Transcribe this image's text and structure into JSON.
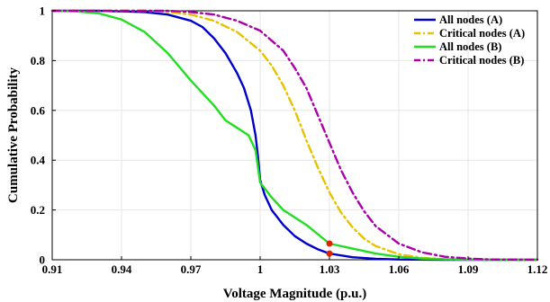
{
  "chart_data": {
    "type": "line",
    "title": "",
    "xlabel": "Voltage Magnitude (p.u.)",
    "ylabel": "Cumulative Probability",
    "xlim": [
      0.91,
      1.12
    ],
    "ylim": [
      0,
      1
    ],
    "xticks": [
      "0.91",
      "0.94",
      "0.97",
      "1",
      "1.03",
      "1.06",
      "1.09",
      "1.12"
    ],
    "yticks": [
      "0",
      "0.2",
      "0.4",
      "0.6",
      "0.8",
      "1"
    ],
    "grid": true,
    "legend_position": "top-right",
    "series": [
      {
        "name": "All nodes (A)",
        "color": "#0000cc",
        "style": "solid",
        "points": [
          [
            0.91,
            1.0
          ],
          [
            0.93,
            1.0
          ],
          [
            0.95,
            0.995
          ],
          [
            0.96,
            0.985
          ],
          [
            0.97,
            0.96
          ],
          [
            0.975,
            0.935
          ],
          [
            0.98,
            0.89
          ],
          [
            0.985,
            0.83
          ],
          [
            0.99,
            0.75
          ],
          [
            0.993,
            0.69
          ],
          [
            0.996,
            0.6
          ],
          [
            0.998,
            0.5
          ],
          [
            0.999,
            0.42
          ],
          [
            1.0,
            0.32
          ],
          [
            1.002,
            0.26
          ],
          [
            1.005,
            0.2
          ],
          [
            1.01,
            0.14
          ],
          [
            1.015,
            0.095
          ],
          [
            1.02,
            0.065
          ],
          [
            1.025,
            0.042
          ],
          [
            1.03,
            0.025
          ],
          [
            1.04,
            0.01
          ],
          [
            1.05,
            0.004
          ],
          [
            1.06,
            0.001
          ],
          [
            1.08,
            0.0
          ],
          [
            1.12,
            0.0
          ]
        ]
      },
      {
        "name": "Critical nodes (A)",
        "color": "#e6c200",
        "style": "dashdot",
        "points": [
          [
            0.91,
            1.0
          ],
          [
            0.95,
            1.0
          ],
          [
            0.96,
            0.995
          ],
          [
            0.97,
            0.985
          ],
          [
            0.98,
            0.96
          ],
          [
            0.99,
            0.915
          ],
          [
            1.0,
            0.84
          ],
          [
            1.005,
            0.78
          ],
          [
            1.01,
            0.7
          ],
          [
            1.015,
            0.6
          ],
          [
            1.02,
            0.48
          ],
          [
            1.025,
            0.37
          ],
          [
            1.03,
            0.27
          ],
          [
            1.035,
            0.19
          ],
          [
            1.04,
            0.13
          ],
          [
            1.045,
            0.085
          ],
          [
            1.05,
            0.055
          ],
          [
            1.06,
            0.022
          ],
          [
            1.07,
            0.008
          ],
          [
            1.08,
            0.002
          ],
          [
            1.1,
            0.0
          ],
          [
            1.12,
            0.0
          ]
        ]
      },
      {
        "name": "All nodes (B)",
        "color": "#22dd22",
        "style": "solid",
        "points": [
          [
            0.91,
            1.0
          ],
          [
            0.92,
            0.998
          ],
          [
            0.93,
            0.99
          ],
          [
            0.94,
            0.965
          ],
          [
            0.95,
            0.915
          ],
          [
            0.96,
            0.83
          ],
          [
            0.97,
            0.72
          ],
          [
            0.98,
            0.62
          ],
          [
            0.985,
            0.56
          ],
          [
            0.99,
            0.53
          ],
          [
            0.995,
            0.5
          ],
          [
            0.998,
            0.44
          ],
          [
            1.0,
            0.31
          ],
          [
            1.005,
            0.25
          ],
          [
            1.01,
            0.2
          ],
          [
            1.02,
            0.14
          ],
          [
            1.03,
            0.065
          ],
          [
            1.04,
            0.045
          ],
          [
            1.05,
            0.025
          ],
          [
            1.06,
            0.012
          ],
          [
            1.07,
            0.005
          ],
          [
            1.08,
            0.002
          ],
          [
            1.1,
            0.0
          ],
          [
            1.12,
            0.0
          ]
        ]
      },
      {
        "name": "Critical nodes (B)",
        "color": "#aa00aa",
        "style": "dashdot",
        "points": [
          [
            0.91,
            1.0
          ],
          [
            0.96,
            1.0
          ],
          [
            0.97,
            0.995
          ],
          [
            0.98,
            0.985
          ],
          [
            0.99,
            0.96
          ],
          [
            1.0,
            0.92
          ],
          [
            1.01,
            0.84
          ],
          [
            1.015,
            0.77
          ],
          [
            1.02,
            0.69
          ],
          [
            1.025,
            0.58
          ],
          [
            1.03,
            0.47
          ],
          [
            1.035,
            0.36
          ],
          [
            1.04,
            0.27
          ],
          [
            1.045,
            0.195
          ],
          [
            1.05,
            0.135
          ],
          [
            1.06,
            0.065
          ],
          [
            1.07,
            0.03
          ],
          [
            1.08,
            0.012
          ],
          [
            1.09,
            0.005
          ],
          [
            1.1,
            0.001
          ],
          [
            1.12,
            0.0
          ]
        ]
      }
    ],
    "markers": [
      {
        "x": 1.03,
        "y": 0.065,
        "color": "#dd2200"
      },
      {
        "x": 1.03,
        "y": 0.025,
        "color": "#dd2200"
      }
    ]
  }
}
